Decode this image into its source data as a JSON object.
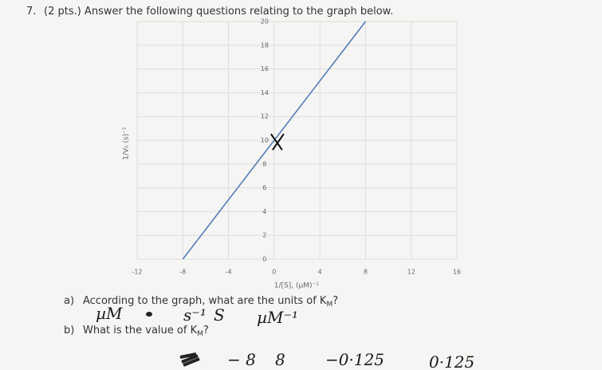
{
  "question": {
    "number": "7.",
    "text": "(2 pts.) Answer the following questions relating to the graph below."
  },
  "chart_data": {
    "type": "line",
    "xlabel": "1/[S], (µM)⁻¹",
    "ylabel": "1/V₀ (s)⁻¹",
    "x": [
      -8,
      8
    ],
    "series": [
      {
        "color": "#4a78b5",
        "values": [
          0,
          20
        ]
      }
    ],
    "xlim": [
      -12,
      16
    ],
    "xticks": [
      -12,
      -8,
      -4,
      0,
      4,
      8,
      12,
      16
    ],
    "ylim": [
      0,
      20
    ],
    "yticks": [
      0,
      2,
      4,
      6,
      8,
      10,
      12,
      14,
      16,
      18,
      20
    ],
    "grid": true
  },
  "part_a": {
    "label": "a)",
    "text": "According to the graph, what are the units of K",
    "sub": "M",
    "end": "?",
    "answers": [
      "µM",
      "s⁻¹",
      "S",
      "µM⁻¹"
    ]
  },
  "part_b": {
    "label": "b)",
    "text": "What is the value of K",
    "sub": "M",
    "end": "?",
    "answers": [
      "− 8",
      "8",
      "−0·125",
      "0·125"
    ]
  }
}
